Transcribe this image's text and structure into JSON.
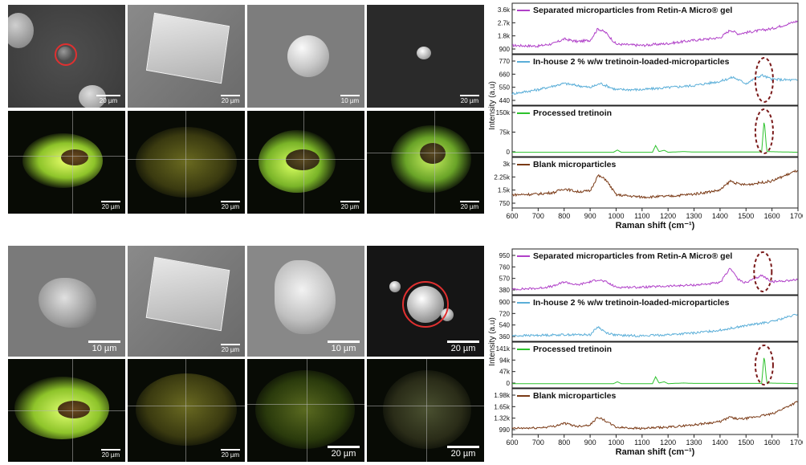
{
  "top_images": {
    "sem_scale_labels": [
      "20 µm",
      "20 µm",
      "10 µm",
      "20 µm"
    ],
    "fluor_scale_labels": [
      "20 µm",
      "20 µm",
      "20 µm",
      "20 µm"
    ]
  },
  "bottom_images": {
    "sem_scale_labels": [
      "10 µm",
      "20 µm",
      "10 µm",
      "20 µm"
    ],
    "fluor_scale_labels": [
      "20 µm",
      "20 µm",
      "20 µm",
      "20 µm"
    ]
  },
  "colors": {
    "purple": "#b040c8",
    "blue": "#5aaed8",
    "green": "#2cc22c",
    "brown": "#7a3a16",
    "highlight_circle": "#e03030",
    "dashed_ellipse": "#7a1a1a"
  },
  "chart_data": [
    {
      "type": "line",
      "xlabel": "Raman shift (cm⁻¹)",
      "ylabel": "Intensity (a.u)",
      "xlim": [
        600,
        1700
      ],
      "xticks": [
        600,
        700,
        800,
        900,
        1000,
        1100,
        1200,
        1300,
        1400,
        1500,
        1600,
        1700
      ],
      "series": [
        {
          "name": "Separated microparticles from Retin-A Micro® gel",
          "color": "#b040c8",
          "yticks": [
            "3.6k",
            "2.7k",
            "1.8k",
            "900"
          ],
          "ylim": [
            900,
            3700
          ],
          "points": [
            [
              600,
              1300
            ],
            [
              700,
              1250
            ],
            [
              760,
              1450
            ],
            [
              800,
              1800
            ],
            [
              850,
              1600
            ],
            [
              900,
              1700
            ],
            [
              930,
              2600
            ],
            [
              960,
              2300
            ],
            [
              1000,
              1400
            ],
            [
              1100,
              1300
            ],
            [
              1200,
              1450
            ],
            [
              1300,
              1700
            ],
            [
              1400,
              1900
            ],
            [
              1440,
              2500
            ],
            [
              1470,
              2200
            ],
            [
              1500,
              2300
            ],
            [
              1600,
              2600
            ],
            [
              1700,
              3200
            ]
          ]
        },
        {
          "name": "In-house 2 % w/w tretinoin-loaded-microparticles",
          "color": "#5aaed8",
          "yticks": [
            "770",
            "660",
            "550",
            "440"
          ],
          "ylim": [
            440,
            790
          ],
          "points": [
            [
              600,
              520
            ],
            [
              700,
              560
            ],
            [
              800,
              620
            ],
            [
              850,
              600
            ],
            [
              900,
              580
            ],
            [
              940,
              620
            ],
            [
              1000,
              560
            ],
            [
              1100,
              560
            ],
            [
              1200,
              580
            ],
            [
              1300,
              600
            ],
            [
              1400,
              640
            ],
            [
              1450,
              680
            ],
            [
              1500,
              620
            ],
            [
              1560,
              700
            ],
            [
              1600,
              660
            ],
            [
              1700,
              650
            ]
          ],
          "highlight": "dashed ellipse around 1570"
        },
        {
          "name": "Processed tretinoin",
          "color": "#2cc22c",
          "yticks": [
            "150k",
            "75k",
            "0"
          ],
          "ylim": [
            0,
            160000
          ],
          "points": [
            [
              600,
              5000
            ],
            [
              990,
              5000
            ],
            [
              1005,
              15000
            ],
            [
              1020,
              5000
            ],
            [
              1140,
              5000
            ],
            [
              1152,
              35000
            ],
            [
              1165,
              8000
            ],
            [
              1185,
              14000
            ],
            [
              1200,
              5000
            ],
            [
              1260,
              8000
            ],
            [
              1300,
              6000
            ],
            [
              1560,
              6000
            ],
            [
              1570,
              150000
            ],
            [
              1580,
              8000
            ],
            [
              1700,
              5000
            ]
          ],
          "highlight": "dashed ellipse around 1570"
        },
        {
          "name": "Blank microparticles",
          "color": "#7a3a16",
          "yticks": [
            "3k",
            "2.25k",
            "1.5k",
            "750"
          ],
          "ylim": [
            750,
            3100
          ],
          "points": [
            [
              600,
              1400
            ],
            [
              700,
              1450
            ],
            [
              760,
              1550
            ],
            [
              800,
              1800
            ],
            [
              850,
              1600
            ],
            [
              900,
              1650
            ],
            [
              930,
              2650
            ],
            [
              960,
              2400
            ],
            [
              1000,
              1400
            ],
            [
              1100,
              1250
            ],
            [
              1200,
              1300
            ],
            [
              1300,
              1450
            ],
            [
              1400,
              1700
            ],
            [
              1440,
              2300
            ],
            [
              1470,
              2100
            ],
            [
              1500,
              2050
            ],
            [
              1600,
              2300
            ],
            [
              1700,
              3000
            ]
          ]
        }
      ]
    },
    {
      "type": "line",
      "xlabel": "Raman shift (cm⁻¹)",
      "ylabel": "Intensity (a.u)",
      "xlim": [
        600,
        1700
      ],
      "xticks": [
        600,
        700,
        800,
        900,
        1000,
        1100,
        1200,
        1300,
        1400,
        1500,
        1600,
        1700
      ],
      "series": [
        {
          "name": "Separated microparticles from Retin-A Micro® gel",
          "color": "#b040c8",
          "yticks": [
            "950",
            "760",
            "570",
            "380"
          ],
          "ylim": [
            380,
            960
          ],
          "points": [
            [
              600,
              420
            ],
            [
              700,
              440
            ],
            [
              760,
              480
            ],
            [
              800,
              560
            ],
            [
              850,
              500
            ],
            [
              900,
              560
            ],
            [
              930,
              600
            ],
            [
              960,
              560
            ],
            [
              1000,
              460
            ],
            [
              1100,
              460
            ],
            [
              1200,
              480
            ],
            [
              1300,
              500
            ],
            [
              1400,
              540
            ],
            [
              1440,
              820
            ],
            [
              1470,
              600
            ],
            [
              1500,
              540
            ],
            [
              1560,
              680
            ],
            [
              1600,
              560
            ],
            [
              1700,
              600
            ]
          ],
          "highlight": "dashed ellipse around 1565"
        },
        {
          "name": "In-house 2 % w/w tretinoin-loaded-microparticles",
          "color": "#5aaed8",
          "yticks": [
            "900",
            "720",
            "540",
            "360"
          ],
          "ylim": [
            360,
            910
          ],
          "points": [
            [
              600,
              400
            ],
            [
              700,
              410
            ],
            [
              800,
              420
            ],
            [
              900,
              420
            ],
            [
              930,
              560
            ],
            [
              960,
              460
            ],
            [
              1000,
              410
            ],
            [
              1100,
              400
            ],
            [
              1200,
              420
            ],
            [
              1300,
              450
            ],
            [
              1400,
              500
            ],
            [
              1500,
              580
            ],
            [
              1600,
              650
            ],
            [
              1700,
              780
            ]
          ]
        },
        {
          "name": "Processed tretinoin",
          "color": "#2cc22c",
          "yticks": [
            "141k",
            "94k",
            "47k",
            "0"
          ],
          "ylim": [
            0,
            150000
          ],
          "points": [
            [
              600,
              5000
            ],
            [
              990,
              5000
            ],
            [
              1005,
              14000
            ],
            [
              1020,
              5000
            ],
            [
              1140,
              5000
            ],
            [
              1152,
              38000
            ],
            [
              1165,
              8000
            ],
            [
              1185,
              14000
            ],
            [
              1200,
              5000
            ],
            [
              1260,
              8000
            ],
            [
              1300,
              6000
            ],
            [
              1560,
              6000
            ],
            [
              1570,
              141000
            ],
            [
              1580,
              8000
            ],
            [
              1700,
              5000
            ]
          ],
          "highlight": "dashed ellipse around 1570"
        },
        {
          "name": "Blank microparticles",
          "color": "#7a3a16",
          "yticks": [
            "1.98k",
            "1.65k",
            "1.32k",
            "990"
          ],
          "ylim": [
            990,
            2000
          ],
          "points": [
            [
              600,
              1080
            ],
            [
              700,
              1100
            ],
            [
              760,
              1150
            ],
            [
              800,
              1250
            ],
            [
              850,
              1150
            ],
            [
              900,
              1200
            ],
            [
              930,
              1450
            ],
            [
              960,
              1320
            ],
            [
              1000,
              1120
            ],
            [
              1100,
              1080
            ],
            [
              1200,
              1120
            ],
            [
              1300,
              1200
            ],
            [
              1400,
              1300
            ],
            [
              1440,
              1450
            ],
            [
              1470,
              1380
            ],
            [
              1500,
              1400
            ],
            [
              1600,
              1550
            ],
            [
              1700,
              1950
            ]
          ]
        }
      ]
    }
  ]
}
